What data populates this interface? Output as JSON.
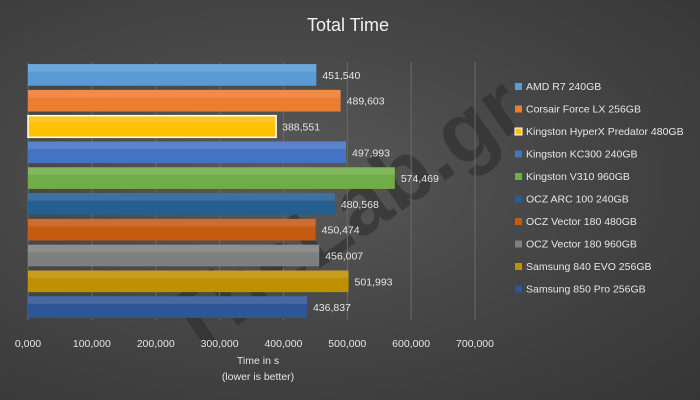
{
  "chart_data": {
    "type": "bar",
    "orientation": "horizontal",
    "title": "Total  Time",
    "xlabel_line1": "Time in s",
    "xlabel_line2": "(lower is better)",
    "xlim": [
      0,
      700000
    ],
    "xticks": [
      0,
      100000,
      200000,
      300000,
      400000,
      500000,
      600000,
      700000
    ],
    "xtick_labels": [
      "0,000",
      "100,000",
      "200,000",
      "300,000",
      "400,000",
      "500,000",
      "600,000",
      "700,000"
    ],
    "grid": true,
    "legend_position": "right",
    "categories": [
      "AMD R7 240GB",
      "Corsair Force LX 256GB",
      "Kingston HyperX Predator 480GB",
      "Kingston KC300 240GB",
      "Kingston V310 960GB",
      "OCZ ARC 100 240GB",
      "OCZ Vector 180 480GB",
      "OCZ Vector 180 960GB",
      "Samsung 840 EVO 256GB",
      "Samsung 850 Pro 256GB"
    ],
    "values": [
      451540,
      489603,
      388551,
      497993,
      574469,
      480568,
      450474,
      456007,
      501993,
      436837
    ],
    "value_labels": [
      "451,540",
      "489,603",
      "388,551",
      "497,993",
      "574,469",
      "480,568",
      "450,474",
      "456,007",
      "501,993",
      "436,837"
    ],
    "colors": [
      "#5b9bd5",
      "#ed7d31",
      "#ffc000",
      "#4472c4",
      "#70ad47",
      "#255e91",
      "#c55a11",
      "#7f7f7f",
      "#bf9000",
      "#2f5597"
    ],
    "highlight_index": 2,
    "highlight_stroke": "#ffffff"
  },
  "watermark": "TheLab.gr"
}
